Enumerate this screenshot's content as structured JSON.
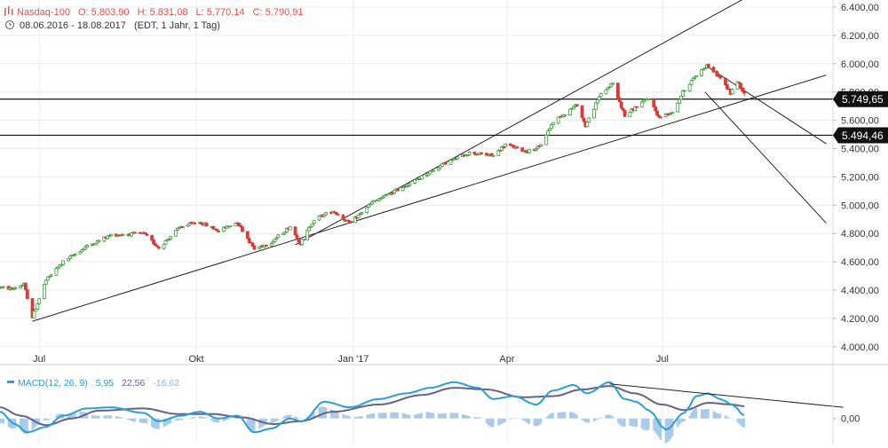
{
  "header": {
    "symbol": "Nasdaq-100",
    "open": "O: 5.803,90",
    "high": "H: 5.831,08",
    "low": "L: 5.770,14",
    "close": "C: 5.790,91",
    "range": "08.06.2016 - 18.08.2017",
    "info": "(EDT, 1 Jahr, 1 Tag)",
    "symbol_color": "#e2504a",
    "icons": {
      "chart": "candlestick-icon",
      "time": "clock-icon"
    }
  },
  "chart_data": [
    {
      "type": "candlestick",
      "title": "Nasdaq-100",
      "x_range": [
        "2016-06-08",
        "2017-08-18"
      ],
      "x_ticks": [
        {
          "date": "2016-07-01",
          "label": "Jul"
        },
        {
          "date": "2016-10-01",
          "label": "Okt"
        },
        {
          "date": "2017-01-01",
          "label": "Jan '17"
        },
        {
          "date": "2017-04-01",
          "label": "Apr"
        },
        {
          "date": "2017-07-01",
          "label": "Jul"
        }
      ],
      "ylim": [
        3880,
        6450
      ],
      "y_ticks": [
        {
          "value": 4000,
          "label": "4.000,00"
        },
        {
          "value": 4200,
          "label": "4.200,00"
        },
        {
          "value": 4400,
          "label": "4.400,00"
        },
        {
          "value": 4600,
          "label": "4.600,00"
        },
        {
          "value": 4800,
          "label": "4.800,00"
        },
        {
          "value": 5000,
          "label": "5.000,00"
        },
        {
          "value": 5200,
          "label": "5.200,00"
        },
        {
          "value": 5400,
          "label": "5.400,00"
        },
        {
          "value": 5600,
          "label": "5.600,00"
        },
        {
          "value": 5800,
          "label": "5.800,00"
        },
        {
          "value": 6000,
          "label": "6.000,00"
        },
        {
          "value": 6200,
          "label": "6.200,00"
        },
        {
          "value": 6400,
          "label": "6.400,00"
        }
      ],
      "grid": true,
      "colors": {
        "up": "#3a9e3a",
        "down": "#d93a3a"
      },
      "trend_path": [
        [
          "2016-06-08",
          4420
        ],
        [
          "2016-06-15",
          4410
        ],
        [
          "2016-06-22",
          4440
        ],
        [
          "2016-06-27",
          4210
        ],
        [
          "2016-07-05",
          4470
        ],
        [
          "2016-07-15",
          4600
        ],
        [
          "2016-07-29",
          4710
        ],
        [
          "2016-08-12",
          4790
        ],
        [
          "2016-08-31",
          4800
        ],
        [
          "2016-09-09",
          4700
        ],
        [
          "2016-09-22",
          4850
        ],
        [
          "2016-10-03",
          4880
        ],
        [
          "2016-10-14",
          4820
        ],
        [
          "2016-10-25",
          4880
        ],
        [
          "2016-11-04",
          4690
        ],
        [
          "2016-11-14",
          4740
        ],
        [
          "2016-11-25",
          4850
        ],
        [
          "2016-12-01",
          4730
        ],
        [
          "2016-12-09",
          4900
        ],
        [
          "2016-12-20",
          4960
        ],
        [
          "2016-12-30",
          4870
        ],
        [
          "2017-01-12",
          5020
        ],
        [
          "2017-01-27",
          5110
        ],
        [
          "2017-02-10",
          5200
        ],
        [
          "2017-02-24",
          5300
        ],
        [
          "2017-03-10",
          5370
        ],
        [
          "2017-03-24",
          5350
        ],
        [
          "2017-03-31",
          5430
        ],
        [
          "2017-04-12",
          5380
        ],
        [
          "2017-04-20",
          5410
        ],
        [
          "2017-04-28",
          5590
        ],
        [
          "2017-05-12",
          5710
        ],
        [
          "2017-05-17",
          5560
        ],
        [
          "2017-05-26",
          5790
        ],
        [
          "2017-06-02",
          5860
        ],
        [
          "2017-06-09",
          5630
        ],
        [
          "2017-06-16",
          5700
        ],
        [
          "2017-06-23",
          5760
        ],
        [
          "2017-06-29",
          5620
        ],
        [
          "2017-07-07",
          5660
        ],
        [
          "2017-07-14",
          5820
        ],
        [
          "2017-07-21",
          5920
        ],
        [
          "2017-07-27",
          5990
        ],
        [
          "2017-08-04",
          5900
        ],
        [
          "2017-08-10",
          5790
        ],
        [
          "2017-08-14",
          5880
        ],
        [
          "2017-08-18",
          5790
        ]
      ],
      "last_bar": {
        "date": "2017-08-18",
        "open": 5803.9,
        "high": 5831.08,
        "low": 5770.14,
        "close": 5790.91
      },
      "horizontal_levels": [
        {
          "value": 5749.65,
          "label": "5.749,65"
        },
        {
          "value": 5494.46,
          "label": "5.494,46"
        }
      ],
      "trend_lines": [
        {
          "from": [
            "2016-06-27",
            4180
          ],
          "to": [
            "2017-08-18",
            5740
          ]
        },
        {
          "from": [
            "2016-11-28",
            4720
          ],
          "to": [
            "2017-08-18",
            6460
          ]
        },
        {
          "from": [
            "2017-07-26",
            5990
          ],
          "to": [
            "2017-08-18",
            5810
          ]
        },
        {
          "from": [
            "2017-07-26",
            5800
          ],
          "to": [
            "2017-08-18",
            5500
          ]
        }
      ]
    },
    {
      "type": "line",
      "title": "MACD(12, 26, 9)",
      "values_label": [
        "5,95",
        "22,56",
        "-16,62"
      ],
      "ylim": [
        -45,
        95
      ],
      "y_ticks": [
        {
          "value": 0,
          "label": "0,00"
        }
      ],
      "colors": {
        "macd": "#2b9fd0",
        "signal": "#6a5f8a",
        "histogram": "#a9c9ea",
        "label": "#2b9fd0"
      },
      "macd": [
        [
          "2016-06-08",
          12
        ],
        [
          "2016-06-17",
          -10
        ],
        [
          "2016-06-24",
          -25
        ],
        [
          "2016-07-05",
          -15
        ],
        [
          "2016-07-15",
          5
        ],
        [
          "2016-07-29",
          18
        ],
        [
          "2016-08-12",
          20
        ],
        [
          "2016-08-31",
          10
        ],
        [
          "2016-09-09",
          -5
        ],
        [
          "2016-09-22",
          5
        ],
        [
          "2016-10-03",
          12
        ],
        [
          "2016-10-14",
          0
        ],
        [
          "2016-10-25",
          5
        ],
        [
          "2016-11-04",
          -25
        ],
        [
          "2016-11-14",
          -18
        ],
        [
          "2016-11-25",
          0
        ],
        [
          "2016-12-02",
          -5
        ],
        [
          "2016-12-15",
          30
        ],
        [
          "2016-12-30",
          20
        ],
        [
          "2017-01-16",
          35
        ],
        [
          "2017-02-01",
          45
        ],
        [
          "2017-02-15",
          55
        ],
        [
          "2017-03-01",
          65
        ],
        [
          "2017-03-15",
          55
        ],
        [
          "2017-03-24",
          35
        ],
        [
          "2017-04-05",
          40
        ],
        [
          "2017-04-18",
          25
        ],
        [
          "2017-04-28",
          50
        ],
        [
          "2017-05-10",
          60
        ],
        [
          "2017-05-18",
          45
        ],
        [
          "2017-05-31",
          65
        ],
        [
          "2017-06-09",
          35
        ],
        [
          "2017-06-16",
          30
        ],
        [
          "2017-06-23",
          15
        ],
        [
          "2017-07-03",
          -20
        ],
        [
          "2017-07-14",
          10
        ],
        [
          "2017-07-21",
          40
        ],
        [
          "2017-07-28",
          45
        ],
        [
          "2017-08-04",
          35
        ],
        [
          "2017-08-11",
          25
        ],
        [
          "2017-08-18",
          6
        ]
      ],
      "signal": [
        [
          "2016-06-08",
          20
        ],
        [
          "2016-06-20",
          5
        ],
        [
          "2016-07-05",
          -12
        ],
        [
          "2016-07-20",
          0
        ],
        [
          "2016-08-05",
          14
        ],
        [
          "2016-08-31",
          18
        ],
        [
          "2016-09-20",
          8
        ],
        [
          "2016-10-10",
          8
        ],
        [
          "2016-10-28",
          2
        ],
        [
          "2016-11-15",
          -10
        ],
        [
          "2016-12-01",
          -5
        ],
        [
          "2016-12-20",
          12
        ],
        [
          "2017-01-16",
          25
        ],
        [
          "2017-02-10",
          42
        ],
        [
          "2017-03-01",
          55
        ],
        [
          "2017-03-20",
          52
        ],
        [
          "2017-04-10",
          38
        ],
        [
          "2017-04-28",
          40
        ],
        [
          "2017-05-15",
          52
        ],
        [
          "2017-05-31",
          58
        ],
        [
          "2017-06-15",
          45
        ],
        [
          "2017-07-01",
          25
        ],
        [
          "2017-07-14",
          15
        ],
        [
          "2017-07-28",
          28
        ],
        [
          "2017-08-11",
          25
        ],
        [
          "2017-08-18",
          22
        ]
      ],
      "trend_line": {
        "from": [
          "2017-05-31",
          62
        ],
        "to": [
          "2017-10-15",
          20
        ]
      }
    }
  ]
}
